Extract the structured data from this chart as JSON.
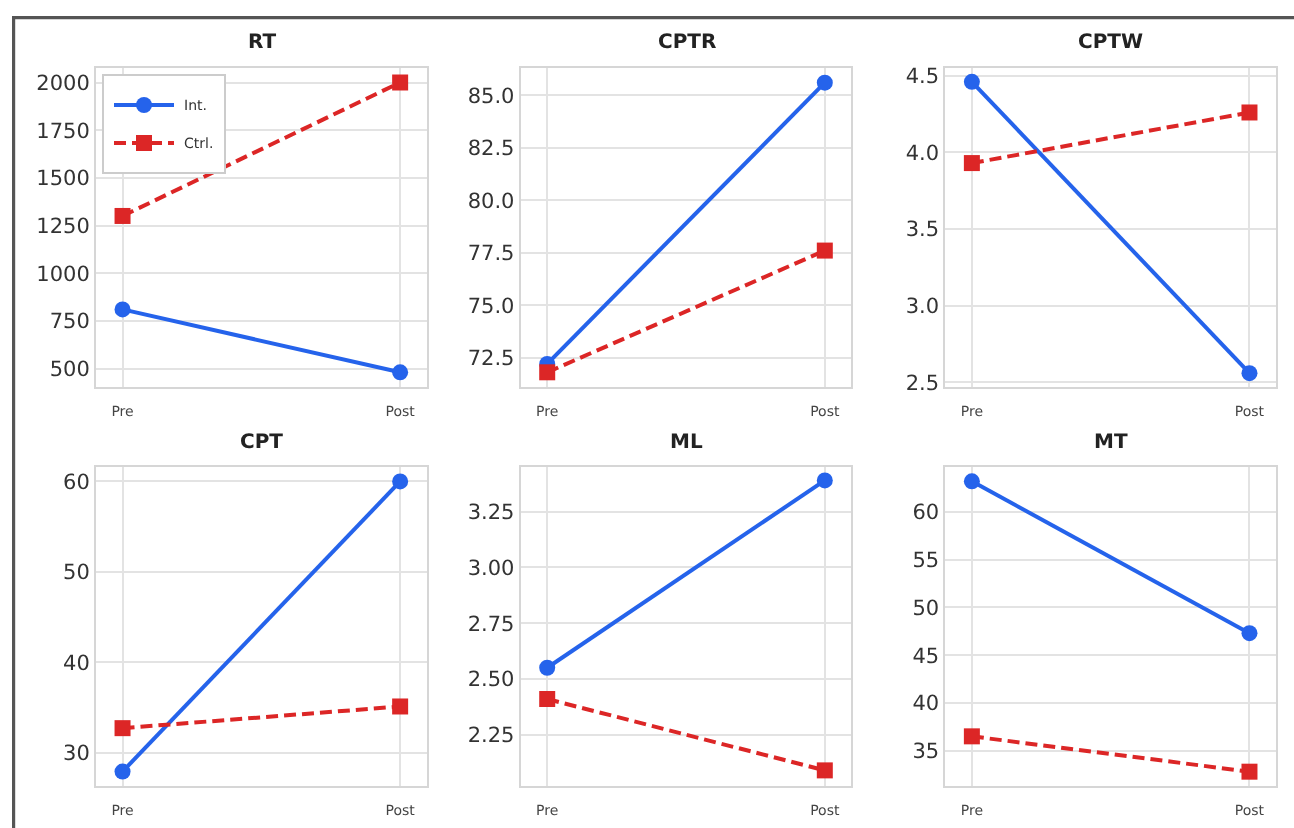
{
  "chart_data": [
    {
      "type": "line",
      "title": "RT",
      "categories": [
        "Pre",
        "Post"
      ],
      "series": [
        {
          "name": "Int.",
          "color": "#2563eb",
          "values": [
            810,
            480
          ],
          "marker": "circle",
          "line_style": "solid"
        },
        {
          "name": "Ctrl.",
          "color": "#dc2626",
          "values": [
            1300,
            2000
          ],
          "marker": "square",
          "line_style": "dashed"
        }
      ],
      "ylim": [
        403,
        2076
      ],
      "yticks": [
        500,
        750,
        1000,
        1250,
        1500,
        1750,
        2000
      ],
      "grid": true,
      "legend": "top left"
    },
    {
      "type": "line",
      "title": "CPTR",
      "categories": [
        "Pre",
        "Post"
      ],
      "series": [
        {
          "color": "#2563eb",
          "values": [
            72.2,
            85.6
          ],
          "marker": "circle",
          "line_style": "solid"
        },
        {
          "color": "#dc2626",
          "values": [
            71.8,
            77.6
          ],
          "marker": "square",
          "line_style": "dashed"
        }
      ],
      "ylim": [
        71.1,
        86.3
      ],
      "yticks": [
        72.5,
        {
          "value": 75,
          "label": "75.0"
        },
        77.5,
        {
          "value": 80,
          "label": "80.0"
        },
        82.5,
        {
          "value": 85,
          "label": "85.0"
        }
      ],
      "grid": true
    },
    {
      "type": "line",
      "title": "CPTW",
      "categories": [
        "Pre",
        "Post"
      ],
      "series": [
        {
          "color": "#2563eb",
          "values": [
            4.46,
            2.56
          ],
          "marker": "circle",
          "line_style": "solid"
        },
        {
          "color": "#dc2626",
          "values": [
            3.93,
            4.26
          ],
          "marker": "square",
          "line_style": "dashed"
        }
      ],
      "ylim": [
        2.47,
        4.55
      ],
      "yticks": [
        2.5,
        {
          "value": 3,
          "label": "3.0"
        },
        3.5,
        {
          "value": 4,
          "label": "4.0"
        },
        4.5
      ],
      "grid": true
    },
    {
      "type": "line",
      "title": "CPT",
      "categories": [
        "Pre",
        "Post"
      ],
      "series": [
        {
          "color": "#2563eb",
          "values": [
            27.9,
            60.0
          ],
          "marker": "circle",
          "line_style": "solid"
        },
        {
          "color": "#dc2626",
          "values": [
            32.7,
            35.1
          ],
          "marker": "square",
          "line_style": "dashed"
        }
      ],
      "ylim": [
        26.3,
        61.6
      ],
      "yticks": [
        30,
        40,
        50,
        60
      ],
      "grid": true
    },
    {
      "type": "line",
      "title": "ML",
      "categories": [
        "Pre",
        "Post"
      ],
      "series": [
        {
          "color": "#2563eb",
          "values": [
            2.55,
            3.39
          ],
          "marker": "circle",
          "line_style": "solid"
        },
        {
          "color": "#dc2626",
          "values": [
            2.41,
            2.09
          ],
          "marker": "square",
          "line_style": "dashed"
        }
      ],
      "ylim": [
        2.02,
        3.45
      ],
      "yticks": [
        2.25,
        {
          "value": 2.5,
          "label": "2.50"
        },
        2.75,
        {
          "value": 3,
          "label": "3.00"
        },
        3.25
      ],
      "grid": true
    },
    {
      "type": "line",
      "title": "MT",
      "categories": [
        "Pre",
        "Post"
      ],
      "series": [
        {
          "color": "#2563eb",
          "values": [
            63.2,
            47.3
          ],
          "marker": "circle",
          "line_style": "solid"
        },
        {
          "color": "#dc2626",
          "values": [
            36.5,
            32.8
          ],
          "marker": "square",
          "line_style": "dashed"
        }
      ],
      "ylim": [
        31.3,
        64.7
      ],
      "yticks": [
        35,
        40,
        45,
        50,
        55,
        60
      ],
      "grid": true
    }
  ]
}
